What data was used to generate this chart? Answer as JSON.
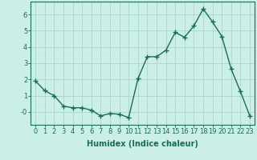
{
  "x": [
    0,
    1,
    2,
    3,
    4,
    5,
    6,
    7,
    8,
    9,
    10,
    11,
    12,
    13,
    14,
    15,
    16,
    17,
    18,
    19,
    20,
    21,
    22,
    23
  ],
  "y": [
    1.9,
    1.3,
    1.0,
    0.35,
    0.25,
    0.25,
    0.1,
    -0.25,
    -0.1,
    -0.15,
    -0.35,
    2.05,
    3.4,
    3.4,
    3.8,
    4.9,
    4.6,
    5.3,
    6.35,
    5.55,
    4.65,
    2.65,
    1.25,
    -0.25
  ],
  "line_color": "#1a6b5a",
  "marker": "+",
  "marker_size": 4,
  "marker_lw": 1.0,
  "bg_color": "#cceee8",
  "grid_color": "#aad4cc",
  "xlabel": "Humidex (Indice chaleur)",
  "ylim": [
    -0.8,
    6.8
  ],
  "xlim": [
    -0.5,
    23.5
  ],
  "yticks": [
    0,
    1,
    2,
    3,
    4,
    5,
    6
  ],
  "ytick_labels": [
    "-0",
    "1",
    "2",
    "3",
    "4",
    "5",
    "6"
  ],
  "xticks": [
    0,
    1,
    2,
    3,
    4,
    5,
    6,
    7,
    8,
    9,
    10,
    11,
    12,
    13,
    14,
    15,
    16,
    17,
    18,
    19,
    20,
    21,
    22,
    23
  ],
  "tick_color": "#1a6b5a",
  "label_color": "#1a6b5a",
  "font_size_label": 7,
  "font_size_tick": 6,
  "linewidth": 1.0
}
